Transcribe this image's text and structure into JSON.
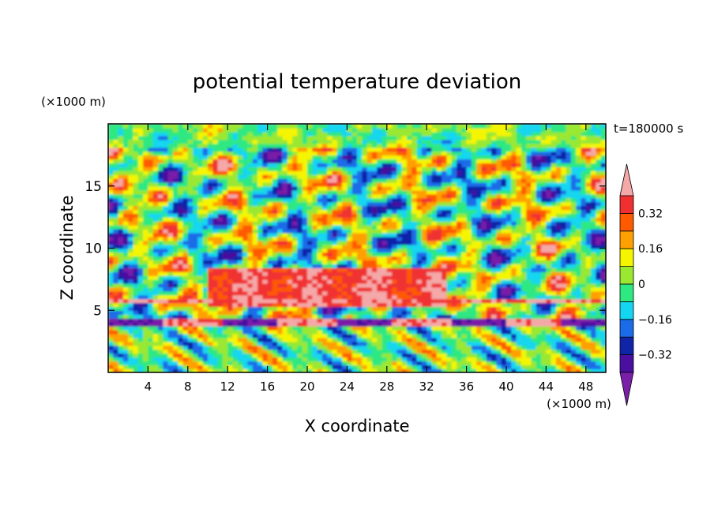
{
  "chart_data": {
    "type": "heatmap",
    "title": "potential temperature deviation",
    "xlabel": "X coordinate",
    "ylabel": "Z coordinate",
    "x_units": "(×1000 m)",
    "y_units": "(×1000 m)",
    "time_label": "t=180000 s",
    "xlim": [
      0,
      50
    ],
    "ylim": [
      0,
      20
    ],
    "x_ticks": [
      4,
      8,
      12,
      16,
      20,
      24,
      28,
      32,
      36,
      40,
      44,
      48
    ],
    "y_ticks": [
      5,
      10,
      15
    ],
    "colorbar": {
      "levels": [
        -0.4,
        -0.32,
        -0.24,
        -0.16,
        -0.08,
        0,
        0.08,
        0.16,
        0.24,
        0.32,
        0.4
      ],
      "tick_labels": [
        "0.32",
        "0.16",
        "0",
        "−0.16",
        "−0.32"
      ],
      "tick_values": [
        0.32,
        0.16,
        0,
        -0.16,
        -0.32
      ],
      "colors": [
        "#7a1fa8",
        "#4a0fa0",
        "#1024a8",
        "#1a6ce8",
        "#15d6f0",
        "#2ee882",
        "#9ae830",
        "#f5f500",
        "#ffa000",
        "#ff5a00",
        "#f03030",
        "#f4a8a8"
      ]
    },
    "bands": [
      {
        "z_range": [
          3.8,
          4.4
        ],
        "description": "alternating purple/pink band"
      },
      {
        "z_range": [
          5.5,
          6.0
        ],
        "description": "strong red/orange layer"
      }
    ]
  }
}
